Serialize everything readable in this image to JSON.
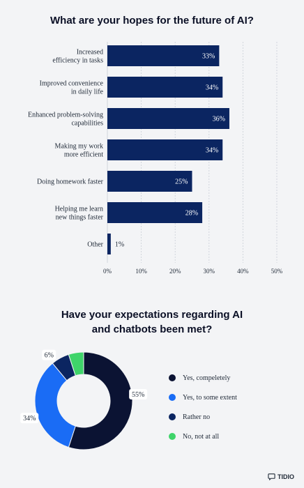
{
  "colors": {
    "bar": "#0b2561",
    "background": "#f3f4f6",
    "pie": [
      "#0b1333",
      "#1a6cf5",
      "#0b2561",
      "#3fd46a"
    ]
  },
  "icons": {
    "brand": "chat-bubble-icon"
  },
  "brand": "TIDIO",
  "chart_data": [
    {
      "type": "bar",
      "orientation": "horizontal",
      "title": "What are your hopes for the future of AI?",
      "categories": [
        [
          "Increased",
          "efficiency in tasks"
        ],
        [
          "Improved convenience",
          "in daily life"
        ],
        [
          "Enhanced problem-solving",
          "capabilities"
        ],
        [
          "Making my work",
          "more efficient"
        ],
        [
          "Doing homework faster"
        ],
        [
          "Helping me learn",
          "new things faster"
        ],
        [
          "Other"
        ]
      ],
      "values": [
        33,
        34,
        36,
        34,
        25,
        28,
        1
      ],
      "value_labels": [
        "33%",
        "34%",
        "36%",
        "34%",
        "25%",
        "28%",
        "1%"
      ],
      "xlim": [
        0,
        50
      ],
      "ticks": [
        "0%",
        "10%",
        "20%",
        "30%",
        "40%",
        "50%"
      ],
      "grid": "vertical dashed"
    },
    {
      "type": "pie",
      "title": [
        "Have your expectations regarding AI",
        "and chatbots been met?"
      ],
      "labels": [
        "Yes, compeletely",
        "Yes, to some extent",
        "Rather no",
        "No, not at all"
      ],
      "values": [
        55,
        34,
        6,
        5
      ],
      "value_labels": [
        "55%",
        "34%",
        "6%",
        ""
      ],
      "legend": "right"
    }
  ]
}
